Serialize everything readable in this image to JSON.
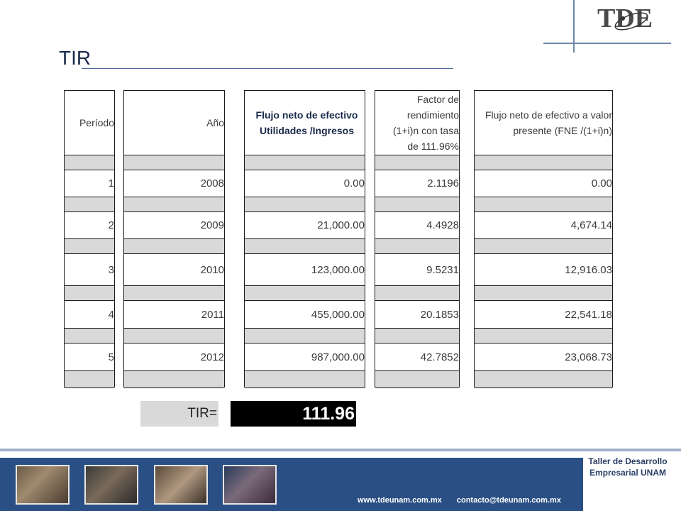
{
  "slide": {
    "title": "TIR"
  },
  "logo": {
    "text": "TDE"
  },
  "table": {
    "headers": [
      "Período",
      "Año",
      "Flujo neto de efectivo Utilidades /Ingresos",
      "Factor de rendimiento (1+i)n con tasa de 111.96%",
      "Flujo neto de efectivo a valor presente (FNE /(1+i)n)"
    ],
    "rows": [
      [
        "1",
        "2008",
        "0.00",
        "2.1196",
        "0.00"
      ],
      [
        "2",
        "2009",
        "21,000.00",
        "4.4928",
        "4,674.14"
      ],
      [
        "3",
        "2010",
        "123,000.00",
        "9.5231",
        "12,916.03"
      ],
      [
        "4",
        "2011",
        "455,000.00",
        "20.1853",
        "22,541.18"
      ],
      [
        "5",
        "2012",
        "987,000.00",
        "42.7852",
        "23,068.73"
      ]
    ]
  },
  "tir": {
    "label": "TIR=",
    "value": "111.96"
  },
  "footer": {
    "org_line1": "Taller de Desarrollo",
    "org_line2": "Empresarial UNAM",
    "website": "www.tdeunam.com.mx",
    "email": "contacto@tdeunam.com.mx"
  },
  "colors": {
    "accent": "#2a4f84",
    "gray_cell": "#d9d9d9"
  }
}
